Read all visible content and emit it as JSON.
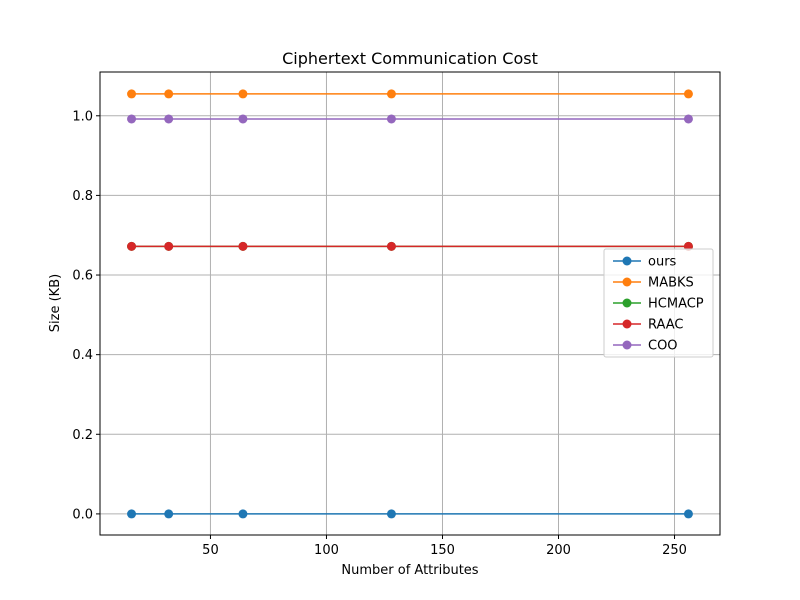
{
  "chart_data": {
    "type": "line",
    "title": "Ciphertext Communication Cost",
    "xlabel": "Number of Attributes",
    "ylabel": "Size (KB)",
    "x": [
      16,
      32,
      64,
      128,
      256
    ],
    "xlim": [
      2.4,
      269.6
    ],
    "ylim": [
      -0.053,
      1.11
    ],
    "xticks": [
      50,
      100,
      150,
      200,
      250
    ],
    "yticks": [
      0.0,
      0.2,
      0.4,
      0.6,
      0.8,
      1.0
    ],
    "xtick_labels": [
      "50",
      "100",
      "150",
      "200",
      "250"
    ],
    "ytick_labels": [
      "0.0",
      "0.2",
      "0.4",
      "0.6",
      "0.8",
      "1.0"
    ],
    "grid": true,
    "legend_position": "center-right",
    "series": [
      {
        "name": "ours",
        "color": "#1f77b4",
        "values": [
          0.0,
          0.0,
          0.0,
          0.0,
          0.0
        ]
      },
      {
        "name": "MABKS",
        "color": "#ff7f0e",
        "values": [
          1.055,
          1.055,
          1.055,
          1.055,
          1.055
        ]
      },
      {
        "name": "HCMACP",
        "color": "#2ca02c",
        "values": [
          0.672,
          0.672,
          0.672,
          0.672,
          0.672
        ]
      },
      {
        "name": "RAAC",
        "color": "#d62728",
        "values": [
          0.672,
          0.672,
          0.672,
          0.672,
          0.672
        ]
      },
      {
        "name": "COO",
        "color": "#9467bd",
        "values": [
          0.992,
          0.992,
          0.992,
          0.992,
          0.992
        ]
      }
    ]
  }
}
